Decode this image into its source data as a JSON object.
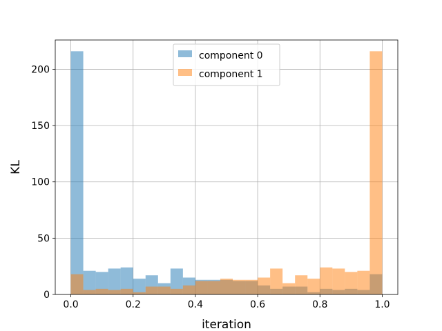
{
  "chart_data": {
    "type": "bar",
    "subtype": "overlaid-histogram",
    "xlabel": "iteration",
    "ylabel": "KL",
    "xlim": [
      -0.05,
      1.05
    ],
    "ylim": [
      0,
      226
    ],
    "grid": true,
    "legend_position": "top-center",
    "bin_width": 0.04,
    "x_ticks": [
      0.0,
      0.2,
      0.4,
      0.6,
      0.8,
      1.0
    ],
    "x_tick_labels": [
      "0.0",
      "0.2",
      "0.4",
      "0.6",
      "0.8",
      "1.0"
    ],
    "y_ticks": [
      0,
      50,
      100,
      150,
      200
    ],
    "y_tick_labels": [
      "0",
      "50",
      "100",
      "150",
      "200"
    ],
    "bin_starts": [
      0.0,
      0.04,
      0.08,
      0.12,
      0.16,
      0.2,
      0.24,
      0.28,
      0.32,
      0.36,
      0.4,
      0.44,
      0.48,
      0.52,
      0.56,
      0.6,
      0.64,
      0.68,
      0.72,
      0.76,
      0.8,
      0.84,
      0.88,
      0.92,
      0.96
    ],
    "series": [
      {
        "name": "component 0",
        "color": "#1f77b4",
        "opacity": 0.5,
        "values": [
          216,
          21,
          20,
          23,
          24,
          14,
          17,
          10,
          23,
          15,
          13,
          13,
          13,
          12,
          12,
          8,
          5,
          7,
          7,
          2,
          5,
          4,
          5,
          4,
          18
        ]
      },
      {
        "name": "component 1",
        "color": "#ff7f0e",
        "opacity": 0.5,
        "values": [
          18,
          4,
          5,
          4,
          5,
          2,
          7,
          7,
          5,
          8,
          12,
          12,
          14,
          13,
          13,
          15,
          23,
          10,
          17,
          14,
          24,
          23,
          20,
          21,
          216
        ]
      }
    ]
  }
}
